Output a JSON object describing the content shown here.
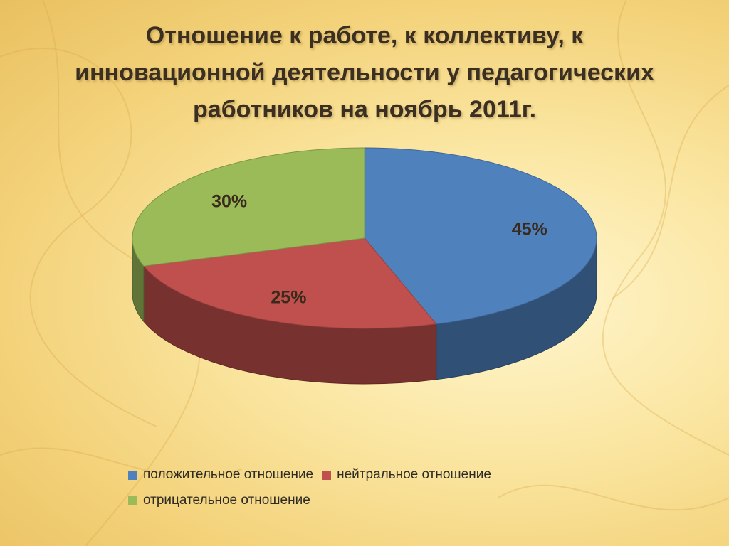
{
  "title": "Отношение к работе, к коллективу, к инновационной деятельности у педагогических работников на ноябрь 2011г.",
  "chart_data": {
    "type": "pie",
    "style": "3d",
    "title": "Отношение к работе, к коллективу, к инновационной деятельности у педагогических работников на ноябрь 2011г.",
    "categories": [
      "положительное отношение",
      "нейтральное отношение",
      "отрицательное отношение"
    ],
    "values": [
      45,
      25,
      30
    ],
    "data_labels": [
      "45%",
      "25%",
      "30%"
    ],
    "colors": [
      "#4f81bd",
      "#c0504d",
      "#9bbb59"
    ],
    "legend_position": "bottom"
  }
}
